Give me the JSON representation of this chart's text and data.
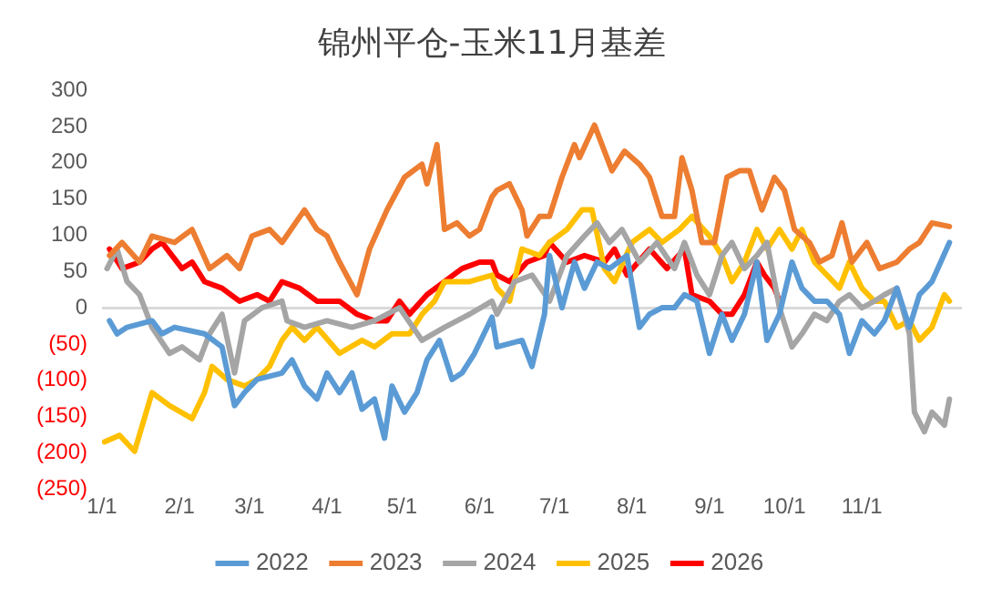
{
  "chart_data": {
    "type": "line",
    "title": "锦州平仓-玉米11月基差",
    "xlim": [
      "--01-01",
      "--12-11"
    ],
    "xticks": [
      {
        "value": "--01-01",
        "label": "1/1"
      },
      {
        "value": "--02-01",
        "label": "2/1"
      },
      {
        "value": "--03-01",
        "label": "3/1"
      },
      {
        "value": "--04-01",
        "label": "4/1"
      },
      {
        "value": "--05-01",
        "label": "5/1"
      },
      {
        "value": "--06-01",
        "label": "6/1"
      },
      {
        "value": "--07-01",
        "label": "7/1"
      },
      {
        "value": "--08-01",
        "label": "8/1"
      },
      {
        "value": "--09-01",
        "label": "9/1"
      },
      {
        "value": "--10-01",
        "label": "10/1"
      },
      {
        "value": "--11-01",
        "label": "11/1"
      }
    ],
    "ylim": [
      -250,
      300
    ],
    "yticks": [
      {
        "value": -250,
        "label": "(250)"
      },
      {
        "value": -200,
        "label": "(200)"
      },
      {
        "value": -150,
        "label": "(150)"
      },
      {
        "value": -100,
        "label": "(100)"
      },
      {
        "value": -50,
        "label": "(50)"
      },
      0,
      50,
      100,
      150,
      200,
      250,
      300
    ],
    "legend": "bottom",
    "marker": "none",
    "line_style": "solid",
    "series": [
      {
        "name": "2022",
        "color": "#5b9bd5",
        "x": [
          "--01-04",
          "--01-07",
          "--01-11",
          "--01-21",
          "--01-25",
          "--01-30",
          "--02-11",
          "--02-18",
          "--02-23",
          "--02-27",
          "--03-04",
          "--03-14",
          "--03-18",
          "--03-23",
          "--03-28",
          "--04-01",
          "--04-06",
          "--04-11",
          "--04-15",
          "--04-20",
          "--04-24",
          "--04-27",
          "--05-02",
          "--05-07",
          "--05-11",
          "--05-16",
          "--05-21",
          "--05-25",
          "--05-30",
          "--06-06",
          "--06-08",
          "--06-18",
          "--06-22",
          "--06-27",
          "--06-29",
          "--07-04",
          "--07-09",
          "--07-13",
          "--07-18",
          "--07-23",
          "--07-30",
          "--08-04",
          "--08-08",
          "--08-13",
          "--08-18",
          "--08-22",
          "--08-27",
          "--09-01",
          "--09-06",
          "--09-10",
          "--09-15",
          "--09-20",
          "--09-24",
          "--09-29",
          "--10-04",
          "--10-08",
          "--10-13",
          "--10-18",
          "--10-23",
          "--10-27",
          "--11-01",
          "--11-06",
          "--11-10",
          "--11-15",
          "--11-20",
          "--11-24",
          "--11-29",
          "--12-06"
        ],
        "values": [
          -18,
          -36,
          -27,
          -18,
          -36,
          -27,
          -36,
          -54,
          -135,
          -117,
          -99,
          -90,
          -72,
          -108,
          -126,
          -90,
          -117,
          -90,
          -140,
          -126,
          -180,
          -108,
          -144,
          -117,
          -72,
          -45,
          -99,
          -90,
          -63,
          -13,
          -54,
          -45,
          -81,
          -9,
          72,
          0,
          63,
          27,
          63,
          54,
          72,
          -27,
          -9,
          0,
          0,
          18,
          9,
          -63,
          -9,
          -45,
          -9,
          63,
          -45,
          -9,
          63,
          27,
          9,
          9,
          -9,
          -63,
          -18,
          -36,
          -18,
          27,
          -27,
          18,
          36,
          90
        ]
      },
      {
        "name": "2023",
        "color": "#ed7d31",
        "x": [
          "--01-04",
          "--01-09",
          "--01-16",
          "--01-21",
          "--01-30",
          "--02-06",
          "--02-13",
          "--02-20",
          "--02-25",
          "--03-02",
          "--03-09",
          "--03-14",
          "--03-23",
          "--03-28",
          "--04-01",
          "--04-06",
          "--04-13",
          "--04-18",
          "--04-25",
          "--05-02",
          "--05-09",
          "--05-11",
          "--05-15",
          "--05-18",
          "--05-23",
          "--05-28",
          "--06-01",
          "--06-06",
          "--06-08",
          "--06-13",
          "--06-18",
          "--06-20",
          "--06-25",
          "--06-29",
          "--07-04",
          "--07-09",
          "--07-11",
          "--07-17",
          "--07-21",
          "--07-24",
          "--07-29",
          "--08-04",
          "--08-08",
          "--08-13",
          "--08-18",
          "--08-21",
          "--08-25",
          "--08-29",
          "--09-03",
          "--09-08",
          "--09-13",
          "--09-17",
          "--09-22",
          "--09-27",
          "--10-01",
          "--10-05",
          "--10-11",
          "--10-15",
          "--10-20",
          "--10-24",
          "--10-28",
          "--11-03",
          "--11-08",
          "--11-15",
          "--11-20",
          "--11-24",
          "--11-29",
          "--12-06"
        ],
        "values": [
          72,
          90,
          63,
          99,
          90,
          108,
          54,
          72,
          54,
          99,
          108,
          90,
          135,
          108,
          99,
          63,
          18,
          81,
          135,
          180,
          198,
          171,
          225,
          108,
          117,
          99,
          108,
          153,
          162,
          171,
          135,
          99,
          126,
          126,
          180,
          225,
          207,
          252,
          216,
          189,
          216,
          198,
          180,
          126,
          126,
          207,
          162,
          90,
          90,
          180,
          189,
          189,
          135,
          180,
          162,
          108,
          90,
          63,
          72,
          117,
          63,
          90,
          54,
          63,
          81,
          90,
          117,
          112
        ]
      },
      {
        "name": "2024",
        "color": "#a5a5a5",
        "x": [
          "--01-03",
          "--01-07",
          "--01-11",
          "--01-16",
          "--01-21",
          "--01-28",
          "--02-02",
          "--02-09",
          "--02-13",
          "--02-18",
          "--02-23",
          "--02-27",
          "--03-06",
          "--03-14",
          "--03-16",
          "--03-23",
          "--04-01",
          "--04-11",
          "--04-20",
          "--04-30",
          "--05-09",
          "--05-18",
          "--05-28",
          "--06-06",
          "--06-08",
          "--06-15",
          "--06-22",
          "--06-29",
          "--07-06",
          "--07-13",
          "--07-18",
          "--07-23",
          "--07-28",
          "--08-04",
          "--08-11",
          "--08-18",
          "--08-22",
          "--08-27",
          "--09-01",
          "--09-06",
          "--09-10",
          "--09-15",
          "--09-20",
          "--09-24",
          "--09-29",
          "--10-04",
          "--10-08",
          "--10-13",
          "--10-18",
          "--10-23",
          "--10-27",
          "--11-01",
          "--11-06",
          "--11-10",
          "--11-15",
          "--11-20",
          "--11-22",
          "--11-26",
          "--11-29",
          "--12-04",
          "--12-06"
        ],
        "values": [
          54,
          81,
          36,
          18,
          -27,
          -63,
          -54,
          -72,
          -36,
          -9,
          -90,
          -18,
          0,
          9,
          -18,
          -27,
          -18,
          -27,
          -18,
          0,
          -45,
          -27,
          -9,
          9,
          -9,
          36,
          45,
          9,
          72,
          99,
          117,
          90,
          108,
          63,
          90,
          54,
          90,
          45,
          18,
          72,
          90,
          54,
          72,
          90,
          0,
          -54,
          -36,
          -9,
          -18,
          9,
          18,
          0,
          9,
          18,
          27,
          -36,
          -144,
          -171,
          -144,
          -162,
          -126
        ]
      },
      {
        "name": "2025",
        "color": "#ffc000",
        "x": [
          "--01-02",
          "--01-08",
          "--01-14",
          "--01-21",
          "--01-28",
          "--02-06",
          "--02-11",
          "--02-14",
          "--02-20",
          "--02-27",
          "--03-04",
          "--03-09",
          "--03-14",
          "--03-18",
          "--03-23",
          "--03-28",
          "--04-06",
          "--04-15",
          "--04-20",
          "--04-27",
          "--05-04",
          "--05-09",
          "--05-14",
          "--05-18",
          "--05-28",
          "--06-06",
          "--06-08",
          "--06-13",
          "--06-18",
          "--06-25",
          "--06-29",
          "--07-06",
          "--07-12",
          "--07-16",
          "--07-21",
          "--07-25",
          "--08-01",
          "--08-08",
          "--08-13",
          "--08-20",
          "--08-25",
          "--09-01",
          "--09-06",
          "--09-10",
          "--09-15",
          "--09-20",
          "--09-24",
          "--09-29",
          "--10-04",
          "--10-08",
          "--10-13",
          "--10-18",
          "--10-23",
          "--10-27",
          "--11-01",
          "--11-06",
          "--11-10",
          "--11-15",
          "--11-20",
          "--11-24",
          "--11-29",
          "--12-04",
          "--12-06"
        ],
        "values": [
          -185,
          -176,
          -198,
          -117,
          -135,
          -153,
          -117,
          -81,
          -99,
          -108,
          -99,
          -81,
          -45,
          -27,
          -45,
          -27,
          -63,
          -45,
          -54,
          -36,
          -36,
          -9,
          9,
          36,
          36,
          45,
          27,
          9,
          81,
          72,
          90,
          108,
          135,
          135,
          54,
          36,
          90,
          108,
          90,
          108,
          126,
          99,
          72,
          36,
          63,
          108,
          81,
          108,
          81,
          108,
          63,
          45,
          27,
          63,
          27,
          9,
          9,
          -27,
          -18,
          -45,
          -27,
          18,
          9
        ]
      },
      {
        "name": "2026",
        "color": "#ff0000",
        "x": [
          "--01-04",
          "--01-09",
          "--01-16",
          "--01-21",
          "--01-25",
          "--02-02",
          "--02-06",
          "--02-11",
          "--02-18",
          "--02-25",
          "--03-04",
          "--03-09",
          "--03-14",
          "--03-21",
          "--03-28",
          "--04-06",
          "--04-13",
          "--04-20",
          "--04-25",
          "--04-30",
          "--05-04",
          "--05-11",
          "--05-18",
          "--05-25",
          "--06-01",
          "--06-06",
          "--06-08",
          "--06-13",
          "--06-20",
          "--06-27",
          "--06-29",
          "--07-06",
          "--07-13",
          "--07-21",
          "--07-25",
          "--07-30",
          "--08-08",
          "--08-15",
          "--08-22",
          "--08-25",
          "--09-01",
          "--09-06",
          "--09-10",
          "--09-15",
          "--09-20",
          "--09-23",
          "--09-27",
          "--09-29"
        ],
        "values": [
          81,
          54,
          63,
          81,
          90,
          54,
          63,
          36,
          27,
          9,
          18,
          9,
          36,
          27,
          9,
          9,
          -9,
          -18,
          -18,
          9,
          -9,
          18,
          36,
          54,
          63,
          63,
          45,
          36,
          63,
          72,
          90,
          63,
          72,
          63,
          81,
          45,
          81,
          54,
          81,
          18,
          9,
          -9,
          -9,
          18,
          63,
          45,
          27,
          9
        ]
      }
    ]
  }
}
